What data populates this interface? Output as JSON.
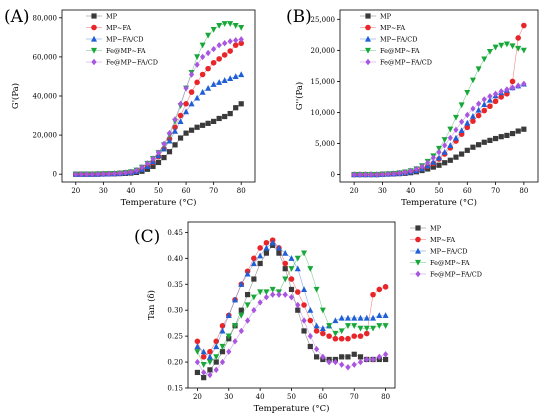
{
  "colors": {
    "MP": "#3a3a3a",
    "MP~FA": "#e8262a",
    "MP~FA/CD": "#1f5fd6",
    "Fe@MP~FA": "#18a83a",
    "Fe@MP~FA/CD": "#a855e0"
  },
  "markers": {
    "MP": "square",
    "MP~FA": "circle",
    "MP~FA/CD": "triangle-up",
    "Fe@MP~FA": "triangle-down",
    "Fe@MP~FA/CD": "diamond"
  },
  "chart_data": [
    {
      "panel": "(A)",
      "type": "scatter",
      "xlabel": "Temperature (°C)",
      "ylabel": "G'(Pa)",
      "xlim": [
        15,
        85
      ],
      "ylim": [
        -4000,
        84000
      ],
      "xticks": [
        20,
        30,
        40,
        50,
        60,
        70,
        80
      ],
      "yticks": [
        0,
        20000,
        40000,
        60000,
        80000
      ],
      "ytick_labels": [
        "0",
        "20,000",
        "40,000",
        "60,000",
        "80,000"
      ],
      "legend_position": "top-center",
      "x": [
        20,
        22,
        24,
        26,
        28,
        30,
        32,
        34,
        36,
        38,
        40,
        42,
        44,
        46,
        48,
        50,
        52,
        54,
        56,
        58,
        60,
        62,
        64,
        66,
        68,
        70,
        72,
        74,
        76,
        78,
        80
      ],
      "series": [
        {
          "name": "MP",
          "values": [
            0,
            0,
            0,
            0,
            0,
            100,
            150,
            200,
            300,
            400,
            600,
            900,
            1500,
            2500,
            4000,
            6000,
            8500,
            11500,
            15000,
            18500,
            21000,
            22500,
            24000,
            25000,
            26000,
            27000,
            28500,
            29500,
            31000,
            34000,
            36000
          ]
        },
        {
          "name": "MP~FA",
          "values": [
            0,
            0,
            0,
            0,
            100,
            150,
            200,
            300,
            500,
            700,
            1000,
            1500,
            2500,
            4000,
            6000,
            9000,
            13000,
            18000,
            24000,
            30000,
            36000,
            42000,
            47000,
            51000,
            54000,
            57000,
            59000,
            61000,
            63000,
            66000,
            67000
          ]
        },
        {
          "name": "MP~FA/CD",
          "values": [
            0,
            0,
            0,
            0,
            100,
            150,
            200,
            300,
            500,
            700,
            1000,
            1500,
            2500,
            4000,
            6500,
            9500,
            13000,
            17000,
            22000,
            27000,
            32000,
            36000,
            39000,
            42000,
            44000,
            46000,
            47000,
            48000,
            49000,
            50000,
            51000
          ]
        },
        {
          "name": "Fe@MP~FA",
          "values": [
            0,
            0,
            0,
            0,
            100,
            150,
            200,
            300,
            500,
            800,
            1200,
            2000,
            3500,
            5500,
            8000,
            11000,
            15000,
            20000,
            27000,
            35000,
            44000,
            52000,
            60000,
            66000,
            71000,
            74000,
            76000,
            77000,
            77000,
            76000,
            75000
          ]
        },
        {
          "name": "Fe@MP~FA/CD",
          "values": [
            0,
            0,
            0,
            0,
            100,
            150,
            200,
            300,
            500,
            800,
            1200,
            2000,
            3500,
            5500,
            8000,
            11000,
            15500,
            21000,
            28000,
            36000,
            44000,
            51000,
            56000,
            60000,
            62000,
            64000,
            66000,
            67000,
            68000,
            68500,
            69000
          ]
        }
      ]
    },
    {
      "panel": "(B)",
      "type": "scatter",
      "xlabel": "Temperature (°C)",
      "ylabel": "G''(Pa)",
      "xlim": [
        15,
        85
      ],
      "ylim": [
        -1200,
        26500
      ],
      "xticks": [
        20,
        30,
        40,
        50,
        60,
        70,
        80
      ],
      "yticks": [
        0,
        5000,
        10000,
        15000,
        20000,
        25000
      ],
      "ytick_labels": [
        "0",
        "5,000",
        "10,000",
        "15,000",
        "20,000",
        "25,000"
      ],
      "legend_position": "top-center",
      "x": [
        20,
        22,
        24,
        26,
        28,
        30,
        32,
        34,
        36,
        38,
        40,
        42,
        44,
        46,
        48,
        50,
        52,
        54,
        56,
        58,
        60,
        62,
        64,
        66,
        68,
        70,
        72,
        74,
        76,
        78,
        80
      ],
      "series": [
        {
          "name": "MP",
          "values": [
            0,
            0,
            0,
            0,
            0,
            50,
            80,
            100,
            150,
            200,
            300,
            450,
            650,
            900,
            1200,
            1500,
            1900,
            2300,
            2800,
            3300,
            3900,
            4400,
            4800,
            5200,
            5500,
            5800,
            6100,
            6300,
            6600,
            7000,
            7300
          ]
        },
        {
          "name": "MP~FA",
          "values": [
            0,
            0,
            0,
            0,
            0,
            50,
            100,
            150,
            200,
            300,
            450,
            650,
            950,
            1300,
            1800,
            2500,
            3300,
            4300,
            5400,
            6500,
            7600,
            8600,
            9500,
            10300,
            11000,
            11800,
            12500,
            13000,
            15000,
            22000,
            24000
          ]
        },
        {
          "name": "MP~FA/CD",
          "values": [
            0,
            0,
            0,
            0,
            0,
            50,
            100,
            150,
            200,
            300,
            450,
            650,
            950,
            1400,
            2000,
            2700,
            3600,
            4700,
            5900,
            7100,
            8300,
            9400,
            10400,
            11300,
            12000,
            12700,
            13200,
            13600,
            14000,
            14300,
            14600
          ]
        },
        {
          "name": "Fe@MP~FA",
          "values": [
            0,
            0,
            0,
            0,
            0,
            50,
            100,
            150,
            250,
            400,
            600,
            900,
            1400,
            2100,
            3000,
            4200,
            5600,
            7300,
            9200,
            11200,
            13200,
            15200,
            17000,
            18600,
            19800,
            20500,
            20800,
            21000,
            20700,
            20300,
            20000
          ]
        },
        {
          "name": "Fe@MP~FA/CD",
          "values": [
            0,
            0,
            0,
            0,
            0,
            50,
            100,
            150,
            250,
            400,
            600,
            900,
            1300,
            1900,
            2700,
            3600,
            4700,
            5900,
            7200,
            8500,
            9600,
            10600,
            11400,
            12100,
            12600,
            13000,
            13400,
            13700,
            14000,
            14300,
            14600
          ]
        }
      ]
    },
    {
      "panel": "(C)",
      "type": "scatter",
      "xlabel": "Temperature (°C)",
      "ylabel": "Tan (δ)",
      "xlim": [
        17,
        83
      ],
      "ylim": [
        0.15,
        0.47
      ],
      "xticks": [
        20,
        30,
        40,
        50,
        60,
        70,
        80
      ],
      "yticks": [
        0.15,
        0.2,
        0.25,
        0.3,
        0.35,
        0.4,
        0.45
      ],
      "ytick_labels": [
        "0.15",
        "0.20",
        "0.25",
        "0.30",
        "0.35",
        "0.40",
        "0.45"
      ],
      "legend_position": "top-right",
      "x": [
        20,
        22,
        24,
        26,
        28,
        30,
        32,
        34,
        36,
        38,
        40,
        42,
        44,
        46,
        48,
        50,
        52,
        54,
        56,
        58,
        60,
        62,
        64,
        66,
        68,
        70,
        72,
        74,
        76,
        78,
        80
      ],
      "series": [
        {
          "name": "MP",
          "values": [
            0.18,
            0.17,
            0.185,
            0.2,
            0.22,
            0.245,
            0.27,
            0.3,
            0.33,
            0.36,
            0.39,
            0.41,
            0.425,
            0.41,
            0.38,
            0.34,
            0.3,
            0.26,
            0.23,
            0.21,
            0.205,
            0.205,
            0.205,
            0.21,
            0.21,
            0.215,
            0.21,
            0.205,
            0.205,
            0.205,
            0.205
          ]
        },
        {
          "name": "MP~FA",
          "values": [
            0.24,
            0.21,
            0.22,
            0.24,
            0.27,
            0.29,
            0.32,
            0.35,
            0.375,
            0.4,
            0.42,
            0.43,
            0.435,
            0.42,
            0.39,
            0.36,
            0.335,
            0.31,
            0.28,
            0.26,
            0.255,
            0.25,
            0.245,
            0.245,
            0.245,
            0.25,
            0.25,
            0.255,
            0.33,
            0.34,
            0.345
          ]
        },
        {
          "name": "MP~FA/CD",
          "values": [
            0.23,
            0.22,
            0.21,
            0.23,
            0.26,
            0.29,
            0.32,
            0.35,
            0.37,
            0.39,
            0.405,
            0.42,
            0.43,
            0.42,
            0.41,
            0.4,
            0.38,
            0.34,
            0.3,
            0.27,
            0.265,
            0.27,
            0.28,
            0.285,
            0.285,
            0.285,
            0.285,
            0.285,
            0.285,
            0.29,
            0.29
          ]
        },
        {
          "name": "Fe@MP~FA",
          "values": [
            0.22,
            0.195,
            0.2,
            0.21,
            0.23,
            0.25,
            0.27,
            0.29,
            0.31,
            0.325,
            0.335,
            0.335,
            0.34,
            0.335,
            0.36,
            0.38,
            0.4,
            0.41,
            0.38,
            0.34,
            0.3,
            0.27,
            0.255,
            0.26,
            0.27,
            0.27,
            0.265,
            0.265,
            0.265,
            0.27,
            0.27
          ]
        },
        {
          "name": "Fe@MP~FA/CD",
          "values": [
            0.2,
            0.18,
            0.175,
            0.185,
            0.2,
            0.22,
            0.24,
            0.26,
            0.28,
            0.3,
            0.315,
            0.325,
            0.33,
            0.33,
            0.33,
            0.325,
            0.31,
            0.28,
            0.25,
            0.225,
            0.21,
            0.2,
            0.2,
            0.195,
            0.19,
            0.195,
            0.2,
            0.205,
            0.205,
            0.21,
            0.215
          ]
        }
      ]
    }
  ]
}
